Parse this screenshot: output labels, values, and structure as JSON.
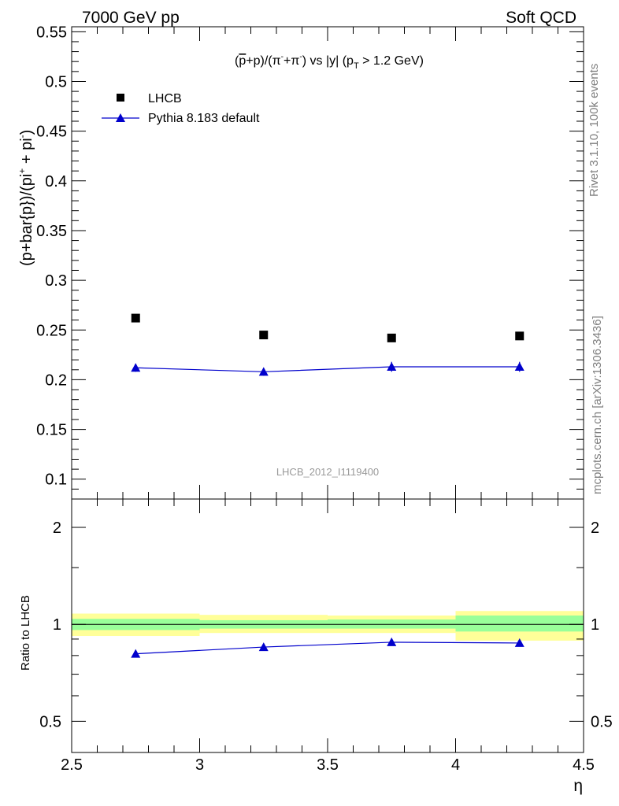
{
  "header": {
    "left_title": "7000 GeV pp",
    "right_title": "Soft QCD"
  },
  "side_labels": {
    "rivet": "Rivet 3.1.10,  100k events",
    "source": "mcplots.cern.ch [arXiv:1306.3436]"
  },
  "colors": {
    "data": "#000000",
    "mc": "#0000cc",
    "band_inner": "#99ff99",
    "band_outer": "#ffff99"
  },
  "chart_data": [
    {
      "type": "scatter",
      "panel": "main",
      "title": "(p̅+p)/(π⁻+π⁻) vs |y| (p_T > 1.2 GeV)",
      "title_parts": {
        "pre": "(",
        "pbar": "p",
        "mid": "+p)/(π",
        "sup1": "-",
        "mid2": "+π",
        "sup2": "-",
        "post": ") vs |y| (p",
        "sub": "T",
        "end": " > 1.2 GeV)"
      },
      "watermark": "LHCB_2012_I1119400",
      "ylabel": "(p+bar{p})/(pi⁺ + pi⁻)",
      "ylabel_parts": {
        "pre": "(p+bar{p})/(pi",
        "sup1": "+",
        "mid": " + pi",
        "sup2": "-",
        "post": ")"
      },
      "xlim": [
        2.5,
        4.5
      ],
      "ylim": [
        0.08,
        0.555
      ],
      "yticks": [
        0.1,
        0.15,
        0.2,
        0.25,
        0.3,
        0.35,
        0.4,
        0.45,
        0.5,
        0.55
      ],
      "ytick_labels": [
        "0.1",
        "0.15",
        "0.2",
        "0.25",
        "0.3",
        "0.35",
        "0.4",
        "0.45",
        "0.5",
        "0.55"
      ],
      "legend": {
        "position": "top-left",
        "entries": [
          "LHCB",
          "Pythia 8.183 default"
        ]
      },
      "series": [
        {
          "name": "LHCB",
          "marker": "square",
          "x": [
            2.75,
            3.25,
            3.75,
            4.25
          ],
          "y": [
            0.262,
            0.245,
            0.242,
            0.244
          ]
        },
        {
          "name": "Pythia 8.183 default",
          "marker": "triangle",
          "line": true,
          "x": [
            2.75,
            3.25,
            3.75,
            4.25
          ],
          "y": [
            0.212,
            0.208,
            0.213,
            0.213
          ],
          "yerr": [
            0.004,
            0.004,
            0.005,
            0.005
          ]
        }
      ]
    },
    {
      "type": "line",
      "panel": "ratio",
      "ylabel": "Ratio to LHCB",
      "xlabel": "η",
      "xlim": [
        2.5,
        4.5
      ],
      "ylim": [
        0.4,
        2.45
      ],
      "yticks": [
        0.5,
        1,
        2
      ],
      "ytick_labels": [
        "0.5",
        "1",
        "2"
      ],
      "xticks": [
        2.5,
        3,
        3.5,
        4,
        4.5
      ],
      "xtick_labels": [
        "2.5",
        "3",
        "3.5",
        "4",
        "4.5"
      ],
      "bands": [
        {
          "x0": 2.5,
          "x1": 3.0,
          "inner": [
            0.96,
            1.04
          ],
          "outer": [
            0.92,
            1.08
          ]
        },
        {
          "x0": 3.0,
          "x1": 3.5,
          "inner": [
            0.97,
            1.03
          ],
          "outer": [
            0.94,
            1.07
          ]
        },
        {
          "x0": 3.5,
          "x1": 4.0,
          "inner": [
            0.97,
            1.035
          ],
          "outer": [
            0.94,
            1.065
          ]
        },
        {
          "x0": 4.0,
          "x1": 4.5,
          "inner": [
            0.95,
            1.065
          ],
          "outer": [
            0.89,
            1.1
          ]
        }
      ],
      "series": [
        {
          "name": "Pythia 8.183 default",
          "marker": "triangle",
          "x": [
            2.75,
            3.25,
            3.75,
            4.25
          ],
          "y": [
            0.81,
            0.85,
            0.88,
            0.875
          ],
          "yerr": [
            0.012,
            0.015,
            0.018,
            0.02
          ]
        }
      ]
    }
  ]
}
